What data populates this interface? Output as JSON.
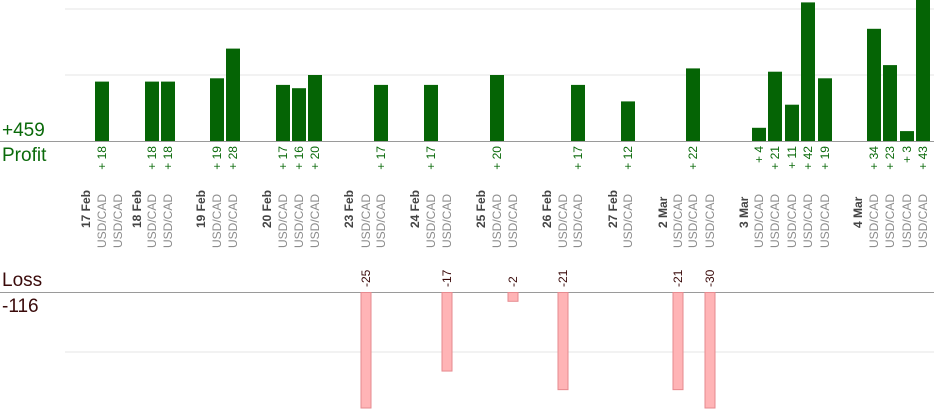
{
  "colors": {
    "profit_bar": "#056405",
    "profit_label": "#0a6a0a",
    "loss_bar": "#ffb4b6",
    "loss_bar_stroke": "#e68a8f",
    "loss_label": "#3a0a0a",
    "grid": "#e4e4e4",
    "axis": "#9a9a9a",
    "pair_label": "#8c8c8c",
    "date_label": "#444444"
  },
  "summary": {
    "profit_total": "+459",
    "profit_label": "Profit",
    "loss_label": "Loss",
    "loss_total": "-116"
  },
  "chart_data": {
    "type": "bar",
    "title": "",
    "xlabel": "",
    "ylabel": "",
    "grid": true,
    "days": [
      "17 Feb",
      "18 Feb",
      "19 Feb",
      "20 Feb",
      "23 Feb",
      "24 Feb",
      "25 Feb",
      "26 Feb",
      "27 Feb",
      "2 Mar",
      "3 Mar",
      "4 Mar"
    ],
    "trades": [
      {
        "day": 0,
        "pair": "USD/CAD",
        "value": 18
      },
      {
        "day": 0,
        "pair": "USD/CAD",
        "value": null
      },
      {
        "day": 1,
        "pair": "USD/CAD",
        "value": 18
      },
      {
        "day": 1,
        "pair": "USD/CAD",
        "value": 18
      },
      {
        "day": 2,
        "pair": "USD/CAD",
        "value": 19
      },
      {
        "day": 2,
        "pair": "USD/CAD",
        "value": 28
      },
      {
        "day": 3,
        "pair": "USD/CAD",
        "value": 17
      },
      {
        "day": 3,
        "pair": "USD/CAD",
        "value": 16
      },
      {
        "day": 3,
        "pair": "USD/CAD",
        "value": 20
      },
      {
        "day": 4,
        "pair": "USD/CAD",
        "value": -25
      },
      {
        "day": 4,
        "pair": "USD/CAD",
        "value": 17
      },
      {
        "day": 5,
        "pair": "USD/CAD",
        "value": 17
      },
      {
        "day": 5,
        "pair": "USD/CAD",
        "value": -17
      },
      {
        "day": 6,
        "pair": "USD/CAD",
        "value": 20
      },
      {
        "day": 6,
        "pair": "USD/CAD",
        "value": -2
      },
      {
        "day": 7,
        "pair": "USD/CAD",
        "value": -21
      },
      {
        "day": 7,
        "pair": "USD/CAD",
        "value": 17
      },
      {
        "day": 8,
        "pair": "USD/CAD",
        "value": 12
      },
      {
        "day": 9,
        "pair": "USD/CAD",
        "value": -21
      },
      {
        "day": 9,
        "pair": "USD/CAD",
        "value": 22
      },
      {
        "day": 9,
        "pair": "USD/CAD",
        "value": -30
      },
      {
        "day": 10,
        "pair": "USD/CAD",
        "value": 4
      },
      {
        "day": 10,
        "pair": "USD/CAD",
        "value": 21
      },
      {
        "day": 10,
        "pair": "USD/CAD",
        "value": 11
      },
      {
        "day": 10,
        "pair": "USD/CAD",
        "value": 42
      },
      {
        "day": 10,
        "pair": "USD/CAD",
        "value": 19
      },
      {
        "day": 11,
        "pair": "USD/CAD",
        "value": 34
      },
      {
        "day": 11,
        "pair": "USD/CAD",
        "value": 23
      },
      {
        "day": 11,
        "pair": "USD/CAD",
        "value": 3
      },
      {
        "day": 11,
        "pair": "USD/CAD",
        "value": 43
      }
    ]
  }
}
